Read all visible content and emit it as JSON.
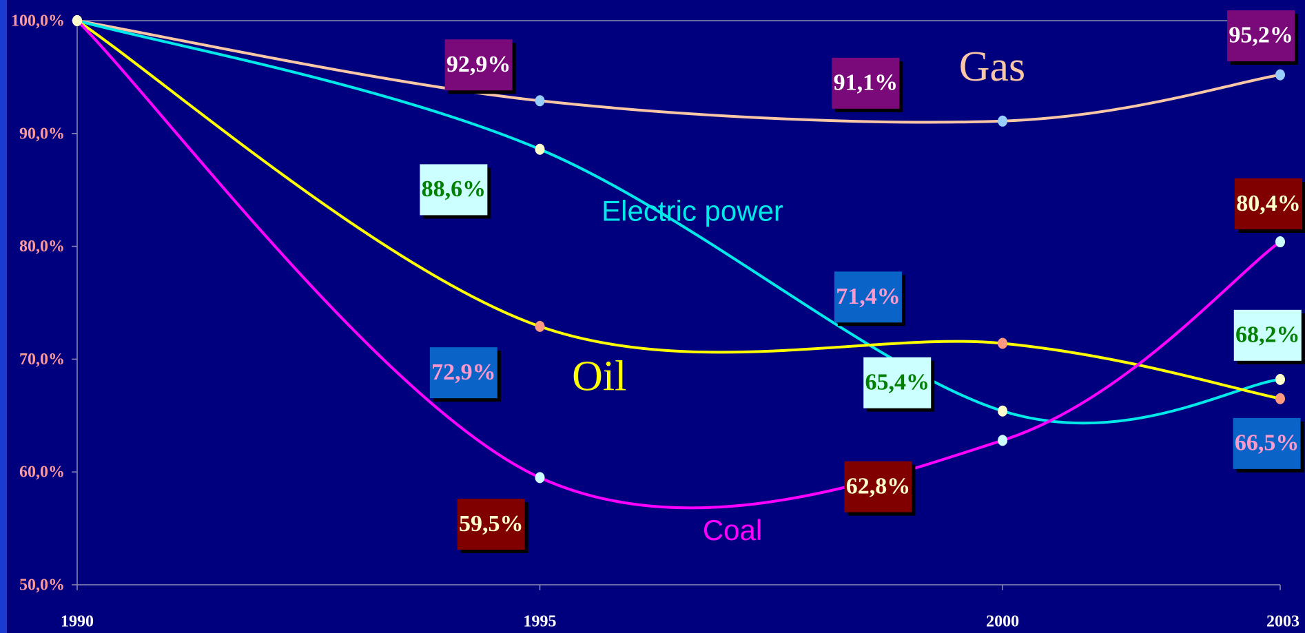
{
  "chart_data": {
    "type": "line",
    "x": [
      1990,
      1995,
      2000,
      2003
    ],
    "xlim": [
      1990,
      2003
    ],
    "xticks": [
      1990,
      1995,
      2000,
      2003
    ],
    "ylim": [
      50,
      100
    ],
    "yticks": [
      {
        "value": 50,
        "label": "50,0%"
      },
      {
        "value": 60,
        "label": "60,0%"
      },
      {
        "value": 70,
        "label": "70,0%"
      },
      {
        "value": 80,
        "label": "80,0%"
      },
      {
        "value": 90,
        "label": "90,0%"
      },
      {
        "value": 100,
        "label": "100,0%"
      }
    ],
    "background": "#00007f",
    "series": [
      {
        "name": "Gas",
        "color": "#f9c6a6",
        "marker_color": "#99ccff",
        "label_fill": "#7a0a7a",
        "label_text": "#ffffff",
        "values": [
          100,
          92.9,
          91.1,
          95.2
        ],
        "value_labels": [
          null,
          "92,9%",
          "91,1%",
          "95,2%"
        ]
      },
      {
        "name": "Electric power",
        "color": "#00e8e8",
        "marker_color": "#ffffcc",
        "label_fill": "#ccffff",
        "label_text": "#008000",
        "values": [
          100,
          88.6,
          65.4,
          68.2
        ],
        "value_labels": [
          null,
          "88,6%",
          "65,4%",
          "68,2%"
        ]
      },
      {
        "name": "Oil",
        "color": "#ffff00",
        "marker_color": "#ff9980",
        "label_fill": "#0a64c8",
        "label_text": "#ff99cc",
        "values": [
          100,
          72.9,
          71.4,
          66.5
        ],
        "value_labels": [
          null,
          "72,9%",
          "71,4%",
          "66,5%"
        ]
      },
      {
        "name": "Coal",
        "color": "#ff00ff",
        "marker_color": "#ccffff",
        "label_fill": "#800000",
        "label_text": "#ffffcc",
        "values": [
          100,
          59.5,
          62.8,
          80.4
        ],
        "value_labels": [
          null,
          "59,5%",
          "62,8%",
          "80,4%"
        ]
      }
    ]
  }
}
